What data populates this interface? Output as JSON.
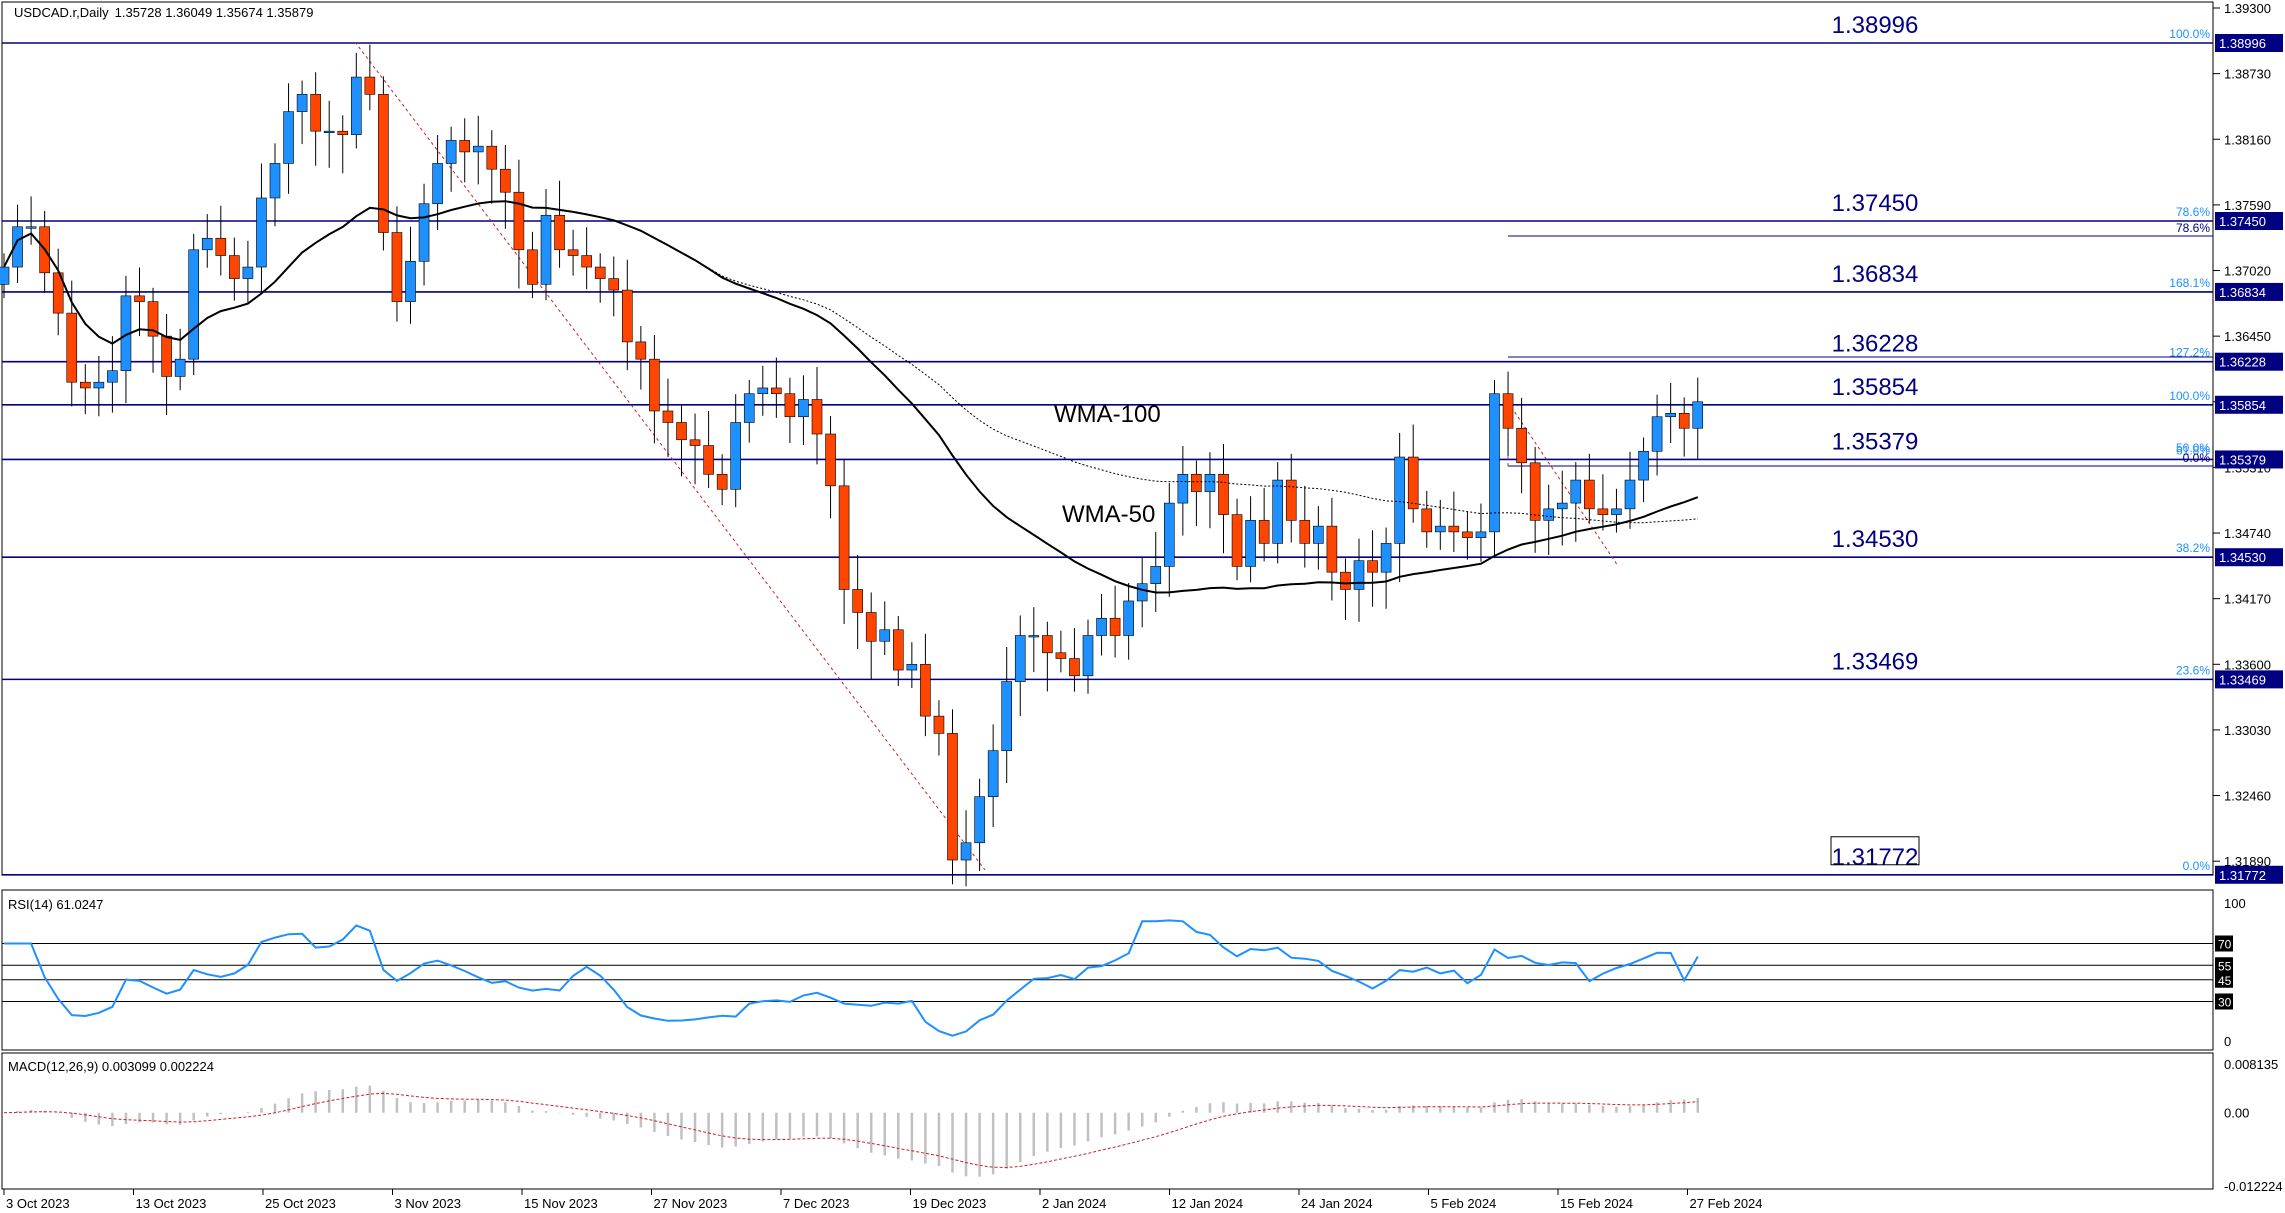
{
  "header": {
    "symbol": "USDCAD.r,Daily",
    "ohlc": "1.35728 1.36049 1.35674 1.35879"
  },
  "price_axis": {
    "ticks": [
      "1.39300",
      "1.38730",
      "1.38160",
      "1.37590",
      "1.37020",
      "1.36450",
      "1.35880",
      "1.35310",
      "1.34740",
      "1.34170",
      "1.33600",
      "1.33030",
      "1.32460",
      "1.31890"
    ]
  },
  "date_axis": {
    "labels": [
      "3 Oct 2023",
      "13 Oct 2023",
      "25 Oct 2023",
      "3 Nov 2023",
      "15 Nov 2023",
      "27 Nov 2023",
      "7 Dec 2023",
      "19 Dec 2023",
      "2 Jan 2024",
      "12 Jan 2024",
      "24 Jan 2024",
      "5 Feb 2024",
      "15 Feb 2024",
      "27 Feb 2024"
    ]
  },
  "levels": [
    {
      "price": 1.38996,
      "label": "1.38996",
      "tag": "1.38996",
      "fib": "100.0%"
    },
    {
      "price": 1.3745,
      "label": "1.37450",
      "tag": "1.37450",
      "fib": "78.6%"
    },
    {
      "price": 1.36834,
      "label": "1.36834",
      "tag": "1.36834",
      "fib": "168.1%"
    },
    {
      "price": 1.36228,
      "label": "1.36228",
      "tag": "1.36228",
      "fib": "127.2%"
    },
    {
      "price": 1.35854,
      "label": "1.35854",
      "tag": "1.35854",
      "fib": "100.0%"
    },
    {
      "price": 1.35379,
      "label": "1.35379",
      "tag": "1.35379",
      "fib": "61.8%"
    },
    {
      "price": 1.3453,
      "label": "1.34530",
      "tag": "1.34530",
      "fib": "38.2%"
    },
    {
      "price": 1.33469,
      "label": "1.33469",
      "tag": "1.33469",
      "fib": "23.6%"
    },
    {
      "price": 1.31772,
      "label": "1.31772",
      "tag": "1.31772",
      "fib": "0.0%"
    }
  ],
  "fib_extra": {
    "fib_786": "78.6%",
    "fib_50": "50.0%",
    "fib_0": "0.0%"
  },
  "indicator_labels": {
    "wma100": "WMA-100",
    "wma50": "WMA-50"
  },
  "rsi": {
    "title": "RSI(14) 61.0247",
    "axis": [
      "100",
      "0"
    ],
    "level_tags": [
      "70",
      "55",
      "45",
      "30"
    ],
    "levels": [
      70,
      55,
      45,
      30
    ]
  },
  "macd": {
    "title": "MACD(12,26,9) 0.003099 0.002224",
    "axis": [
      "0.008135",
      "0.00",
      "-0.012224"
    ]
  },
  "colors": {
    "bull": "#1e90ff",
    "bear": "#ff4500",
    "level": "#000080",
    "rsi": "#1e90ff",
    "signal": "#cc2222",
    "hist": "#c0c0c0",
    "ma": "#000000"
  },
  "chart_data": {
    "type": "candlestick",
    "symbol": "USDCAD.r",
    "timeframe": "Daily",
    "ylim": [
      1.3177,
      1.393
    ],
    "dates": [
      "3 Oct 2023",
      "13 Oct 2023",
      "25 Oct 2023",
      "3 Nov 2023",
      "15 Nov 2023",
      "27 Nov 2023",
      "7 Dec 2023",
      "19 Dec 2023",
      "2 Jan 2024",
      "12 Jan 2024",
      "24 Jan 2024",
      "5 Feb 2024",
      "15 Feb 2024",
      "27 Feb 2024"
    ],
    "close_series": [
      1.3705,
      1.374,
      1.374,
      1.37,
      1.3665,
      1.3605,
      1.36,
      1.3605,
      1.3615,
      1.368,
      1.3675,
      1.3645,
      1.361,
      1.3625,
      1.372,
      1.373,
      1.3715,
      1.3695,
      1.3705,
      1.3765,
      1.3795,
      1.384,
      1.3855,
      1.3823,
      1.3823,
      1.382,
      1.387,
      1.3855,
      1.3735,
      1.3675,
      1.371,
      1.376,
      1.3795,
      1.3815,
      1.3805,
      1.381,
      1.379,
      1.377,
      1.372,
      1.369,
      1.375,
      1.372,
      1.3715,
      1.3705,
      1.3695,
      1.3685,
      1.364,
      1.3625,
      1.358,
      1.357,
      1.3555,
      1.355,
      1.3525,
      1.3512,
      1.357,
      1.3595,
      1.36,
      1.3595,
      1.3575,
      1.359,
      1.356,
      1.3515,
      1.3425,
      1.3405,
      1.338,
      1.339,
      1.3355,
      1.336,
      1.3315,
      1.33,
      1.319,
      1.3205,
      1.3245,
      1.3285,
      1.3345,
      1.3385,
      1.3385,
      1.337,
      1.3365,
      1.335,
      1.3385,
      1.34,
      1.3385,
      1.3415,
      1.343,
      1.3445,
      1.35,
      1.3525,
      1.351,
      1.3525,
      1.349,
      1.3445,
      1.3485,
      1.3465,
      1.352,
      1.3485,
      1.3465,
      1.348,
      1.344,
      1.3425,
      1.345,
      1.344,
      1.3465,
      1.354,
      1.3495,
      1.3475,
      1.348,
      1.3475,
      1.347,
      1.3475,
      1.3595,
      1.3565,
      1.3535,
      1.3485,
      1.3495,
      1.35,
      1.352,
      1.3495,
      1.349,
      1.3495,
      1.352,
      1.3545,
      1.3575,
      1.3578,
      1.3565,
      1.3588
    ],
    "rsi_last": 61.0247,
    "macd": {
      "main": 0.003099,
      "signal": 0.002224
    }
  }
}
